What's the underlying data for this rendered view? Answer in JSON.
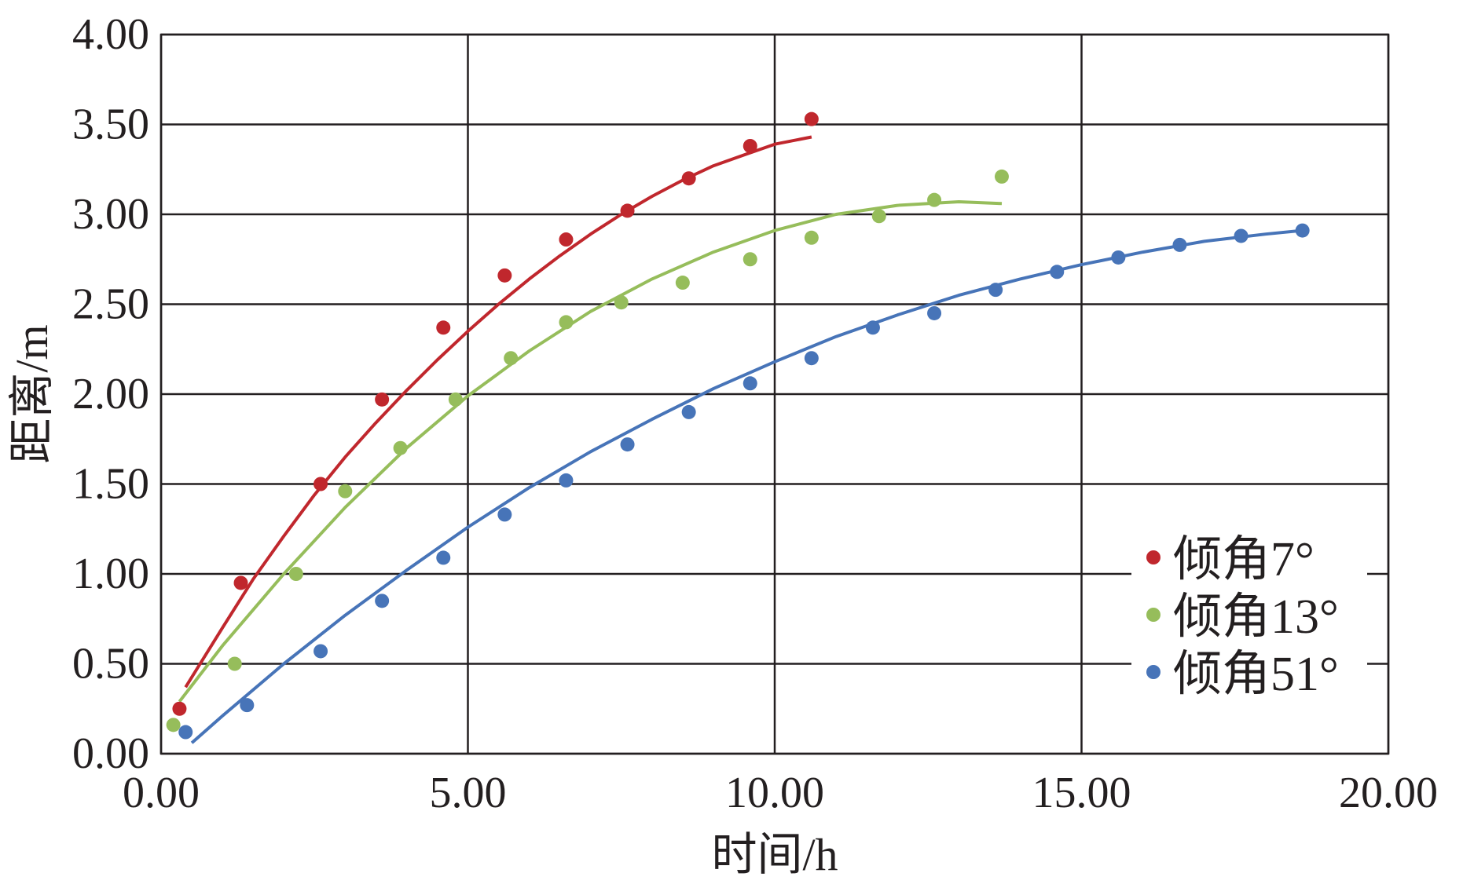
{
  "chart_data": {
    "type": "scatter",
    "title": "",
    "xlabel": "时间/h",
    "ylabel": "距离/m",
    "xlim": [
      0,
      20
    ],
    "ylim": [
      0,
      4
    ],
    "xticks": [
      0,
      5,
      10,
      15,
      20
    ],
    "yticks": [
      0,
      0.5,
      1,
      1.5,
      2,
      2.5,
      3,
      3.5,
      4
    ],
    "xtick_labels": [
      "0.00",
      "5.00",
      "10.00",
      "15.00",
      "20.00"
    ],
    "ytick_labels": [
      "0.00",
      "0.50",
      "1.00",
      "1.50",
      "2.00",
      "2.50",
      "3.00",
      "3.50",
      "4.00"
    ],
    "grid": true,
    "legend_position": "bottom-right",
    "series": [
      {
        "name": "倾角7°",
        "color": "#c0272d",
        "points": [
          [
            0.3,
            0.25
          ],
          [
            1.3,
            0.95
          ],
          [
            2.6,
            1.5
          ],
          [
            3.6,
            1.97
          ],
          [
            4.6,
            2.37
          ],
          [
            5.6,
            2.66
          ],
          [
            6.6,
            2.86
          ],
          [
            7.6,
            3.02
          ],
          [
            8.6,
            3.2
          ],
          [
            9.6,
            3.38
          ],
          [
            10.6,
            3.53
          ]
        ],
        "fit": [
          [
            0.4,
            0.37
          ],
          [
            1.0,
            0.7
          ],
          [
            1.5,
            0.97
          ],
          [
            2.0,
            1.21
          ],
          [
            2.5,
            1.44
          ],
          [
            3.0,
            1.65
          ],
          [
            3.5,
            1.84
          ],
          [
            4.0,
            2.02
          ],
          [
            4.5,
            2.19
          ],
          [
            5.0,
            2.35
          ],
          [
            5.5,
            2.5
          ],
          [
            6.0,
            2.64
          ],
          [
            6.5,
            2.77
          ],
          [
            7.0,
            2.89
          ],
          [
            7.5,
            3.0
          ],
          [
            8.0,
            3.1
          ],
          [
            8.5,
            3.19
          ],
          [
            9.0,
            3.27
          ],
          [
            9.5,
            3.33
          ],
          [
            10.0,
            3.39
          ],
          [
            10.6,
            3.43
          ]
        ]
      },
      {
        "name": "倾角13°",
        "color": "#96bd5b",
        "points": [
          [
            0.2,
            0.16
          ],
          [
            1.2,
            0.5
          ],
          [
            2.2,
            1.0
          ],
          [
            3.0,
            1.46
          ],
          [
            3.9,
            1.7
          ],
          [
            4.8,
            1.97
          ],
          [
            5.7,
            2.2
          ],
          [
            6.6,
            2.4
          ],
          [
            7.5,
            2.51
          ],
          [
            8.5,
            2.62
          ],
          [
            9.6,
            2.75
          ],
          [
            10.6,
            2.87
          ],
          [
            11.7,
            2.99
          ],
          [
            12.6,
            3.08
          ],
          [
            13.7,
            3.21
          ]
        ],
        "fit": [
          [
            0.3,
            0.29
          ],
          [
            1.0,
            0.6
          ],
          [
            2.0,
            1.0
          ],
          [
            3.0,
            1.37
          ],
          [
            4.0,
            1.7
          ],
          [
            5.0,
            1.99
          ],
          [
            6.0,
            2.24
          ],
          [
            7.0,
            2.46
          ],
          [
            8.0,
            2.64
          ],
          [
            9.0,
            2.79
          ],
          [
            10.0,
            2.91
          ],
          [
            11.0,
            3.0
          ],
          [
            12.0,
            3.05
          ],
          [
            13.0,
            3.07
          ],
          [
            13.7,
            3.06
          ]
        ]
      },
      {
        "name": "倾角51°",
        "color": "#4774b8",
        "points": [
          [
            0.4,
            0.12
          ],
          [
            1.4,
            0.27
          ],
          [
            2.6,
            0.57
          ],
          [
            3.6,
            0.85
          ],
          [
            4.6,
            1.09
          ],
          [
            5.6,
            1.33
          ],
          [
            6.6,
            1.52
          ],
          [
            7.6,
            1.72
          ],
          [
            8.6,
            1.9
          ],
          [
            9.6,
            2.06
          ],
          [
            10.6,
            2.2
          ],
          [
            11.6,
            2.37
          ],
          [
            12.6,
            2.45
          ],
          [
            13.6,
            2.58
          ],
          [
            14.6,
            2.68
          ],
          [
            15.6,
            2.76
          ],
          [
            16.6,
            2.83
          ],
          [
            17.6,
            2.88
          ],
          [
            18.6,
            2.91
          ]
        ],
        "fit": [
          [
            0.5,
            0.06
          ],
          [
            1.0,
            0.21
          ],
          [
            2.0,
            0.5
          ],
          [
            3.0,
            0.77
          ],
          [
            4.0,
            1.02
          ],
          [
            5.0,
            1.26
          ],
          [
            6.0,
            1.48
          ],
          [
            7.0,
            1.68
          ],
          [
            8.0,
            1.86
          ],
          [
            9.0,
            2.03
          ],
          [
            10.0,
            2.18
          ],
          [
            11.0,
            2.32
          ],
          [
            12.0,
            2.44
          ],
          [
            13.0,
            2.55
          ],
          [
            14.0,
            2.64
          ],
          [
            15.0,
            2.72
          ],
          [
            16.0,
            2.79
          ],
          [
            17.0,
            2.85
          ],
          [
            18.0,
            2.89
          ],
          [
            18.6,
            2.91
          ]
        ]
      }
    ]
  }
}
